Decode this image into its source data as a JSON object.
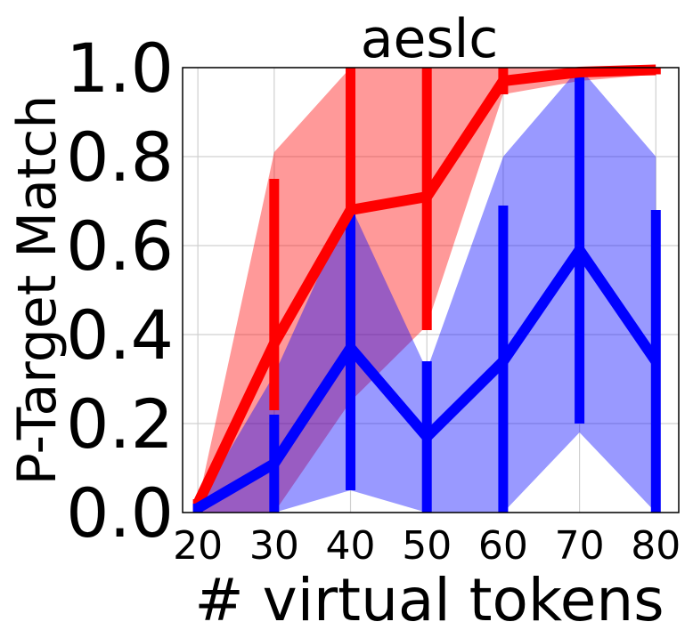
{
  "chart_data": {
    "type": "line",
    "title": "aeslc",
    "xlabel": "# virtual tokens",
    "ylabel": "P-Target Match",
    "x": [
      20,
      30,
      40,
      50,
      60,
      70,
      80
    ],
    "xticks": [
      "20",
      "30",
      "40",
      "50",
      "60",
      "70",
      "80"
    ],
    "yticks": [
      "0.0",
      "0.2",
      "0.4",
      "0.6",
      "0.8",
      "1.0"
    ],
    "xlim": [
      18,
      83
    ],
    "ylim": [
      0,
      1
    ],
    "grid": true,
    "legend": "none",
    "series": [
      {
        "color": "#ff0000",
        "values": [
          0.02,
          0.38,
          0.68,
          0.71,
          0.97,
          0.99,
          0.995
        ],
        "err_low": [
          0.0,
          0.23,
          0.27,
          0.41,
          0.94,
          0.98,
          0.985
        ],
        "err_high": [
          0.03,
          0.75,
          1.0,
          1.0,
          1.0,
          1.0,
          1.0
        ],
        "band_low": [
          0.0,
          0.0,
          0.25,
          0.42,
          0.94,
          0.97,
          0.985
        ],
        "band_high": [
          0.02,
          0.81,
          1.0,
          1.0,
          1.0,
          1.0,
          1.0
        ]
      },
      {
        "color": "#0000ff",
        "values": [
          0.01,
          0.11,
          0.37,
          0.17,
          0.34,
          0.59,
          0.34
        ],
        "err_low": [
          0.0,
          0.0,
          0.05,
          0.0,
          0.0,
          0.2,
          0.0
        ],
        "err_high": [
          0.02,
          0.22,
          0.68,
          0.34,
          0.69,
          1.0,
          0.68
        ],
        "band_low": [
          0.0,
          0.0,
          0.05,
          0.0,
          0.0,
          0.18,
          0.0
        ],
        "band_high": [
          0.02,
          0.31,
          0.69,
          0.32,
          0.8,
          1.0,
          0.8
        ]
      }
    ]
  }
}
